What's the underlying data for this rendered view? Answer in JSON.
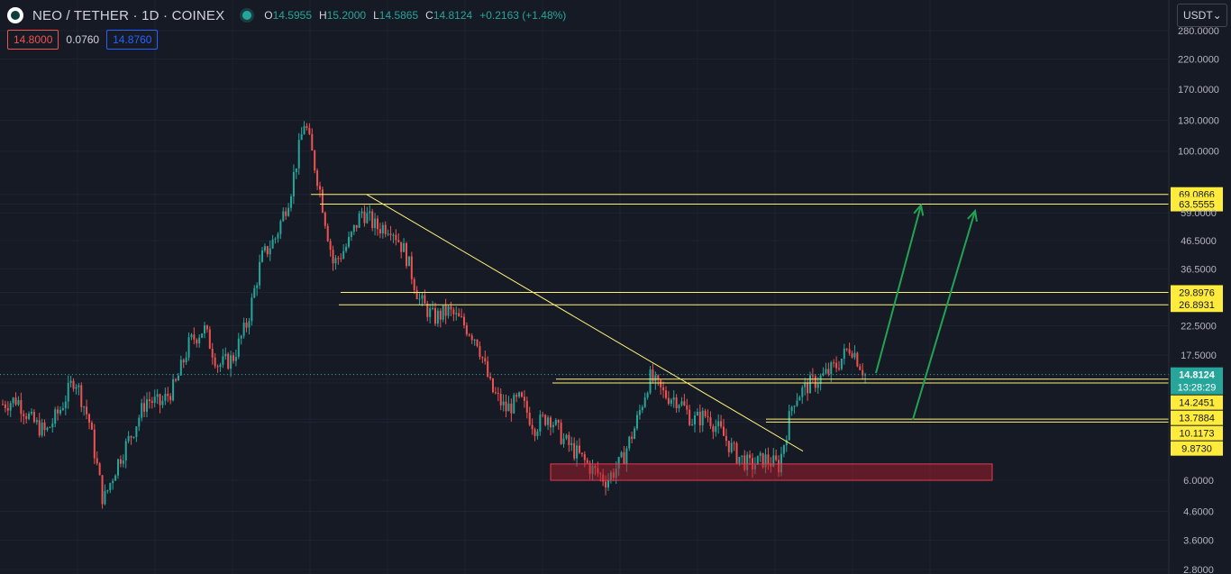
{
  "header": {
    "symbol": "NEO / TETHER · 1D · COINEX",
    "open_label": "O",
    "open": "14.5955",
    "high_label": "H",
    "high": "15.2000",
    "low_label": "L",
    "low": "14.5865",
    "close_label": "C",
    "close": "14.8124",
    "change": "+0.2163 (+1.48%)"
  },
  "trade": {
    "sell": "14.8000",
    "spread": "0.0760",
    "buy": "14.8760"
  },
  "currency": {
    "selected": "USDT",
    "icon": "chevron-down-icon"
  },
  "colors": {
    "background": "#161a25",
    "up": "#26a69a",
    "down": "#ef5350",
    "line": "#fff176",
    "label_bg": "#ffeb3b",
    "zone": "#b71c2b",
    "arrow": "#22a353"
  },
  "chart_data": {
    "type": "candlestick",
    "y_scale": "log",
    "ylim": [
      2.8,
      280
    ],
    "axis_ticks": [
      "280.0000",
      "220.0000",
      "170.0000",
      "130.0000",
      "100.0000",
      "69.0866",
      "63.5555",
      "59.0000",
      "46.5000",
      "36.5000",
      "29.8976",
      "26.8931",
      "22.5000",
      "17.5000",
      "14.8124",
      "13:28:29",
      "14.2451",
      "13.7884",
      "10.1173",
      "9.8730",
      "6.0000",
      "4.6000",
      "3.6000",
      "2.8000"
    ],
    "price_series": [
      11.5,
      12.0,
      10.0,
      9.0,
      11.0,
      14.5,
      10.0,
      5.0,
      7.0,
      9.0,
      12.0,
      11.5,
      13.5,
      19.5,
      22.0,
      16.0,
      17.0,
      23.0,
      40.0,
      48.0,
      70.0,
      130.0,
      75.0,
      38.0,
      45.0,
      60.0,
      52.0,
      53.0,
      42.0,
      28.0,
      24.0,
      25.5,
      23.0,
      20.0,
      13.0,
      11.0,
      12.0,
      9.5,
      10.5,
      8.5,
      7.5,
      6.6,
      6.0,
      7.0,
      9.5,
      14.5,
      12.5,
      12.0,
      10.0,
      10.5,
      9.0,
      7.5,
      6.8,
      7.2,
      6.8,
      12.0,
      13.5,
      14.5,
      16.0,
      19.0,
      14.8
    ],
    "price_lines": [
      {
        "label": "69.0866",
        "value": 69.0866
      },
      {
        "label": "63.5555",
        "value": 63.5555
      },
      {
        "label": "29.8976",
        "value": 29.8976
      },
      {
        "label": "26.8931",
        "value": 26.8931
      },
      {
        "label": "14.2451",
        "value": 14.2451
      },
      {
        "label": "13.7884",
        "value": 13.7884
      },
      {
        "label": "10.1173",
        "value": 10.1173
      },
      {
        "label": "9.8730",
        "value": 9.873
      }
    ],
    "last_price": {
      "label": "14.8124",
      "countdown": "13:28:29"
    },
    "demand_zone": [
      6.0,
      6.9
    ],
    "trendline": [
      69.0,
      7.7
    ],
    "arrows": [
      [
        15.0,
        63.0
      ],
      [
        10.1,
        60.0
      ]
    ]
  }
}
